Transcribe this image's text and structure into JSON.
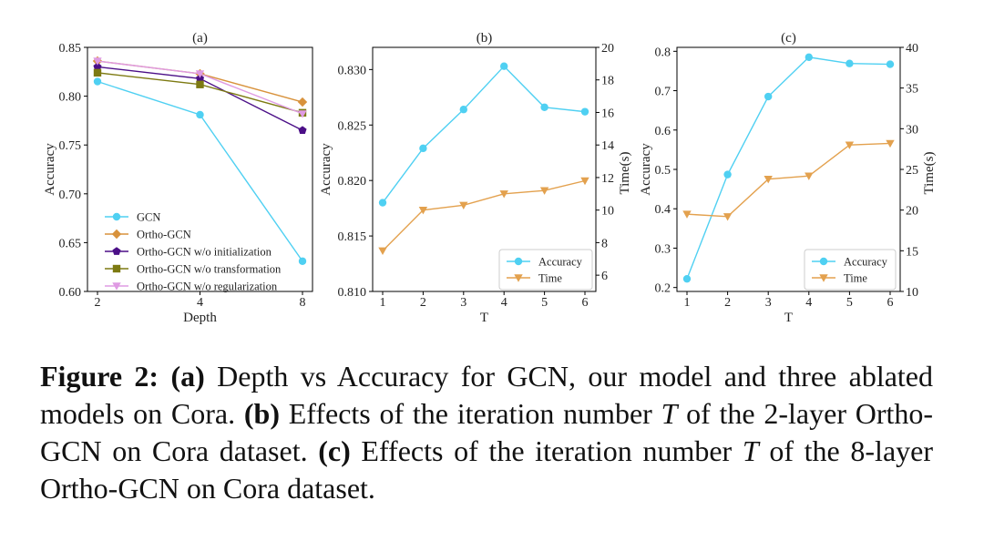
{
  "colors": {
    "gcn": "#4fd0f2",
    "ortho": "#d8923c",
    "init": "#4b0f87",
    "transform": "#7d7a12",
    "regular": "#df9be3",
    "time": "#e3a14e"
  },
  "chart_data": [
    {
      "type": "line",
      "title": "(a)",
      "xlabel": "Depth",
      "ylabel": "Accuracy",
      "categories": [
        "2",
        "4",
        "8"
      ],
      "ylim": [
        0.6,
        0.85
      ],
      "yticks": [
        "0.60",
        "0.65",
        "0.70",
        "0.75",
        "0.80",
        "0.85"
      ],
      "legend_position": "lower-left",
      "series": [
        {
          "name": "GCN",
          "values": [
            0.815,
            0.781,
            0.631
          ],
          "marker": "circle",
          "color_key": "gcn"
        },
        {
          "name": "Ortho-GCN",
          "values": [
            0.836,
            0.823,
            0.794
          ],
          "marker": "diamond",
          "color_key": "ortho"
        },
        {
          "name": "Ortho-GCN w/o initialization",
          "values": [
            0.83,
            0.818,
            0.765
          ],
          "marker": "pentagon",
          "color_key": "init"
        },
        {
          "name": "Ortho-GCN w/o transformation",
          "values": [
            0.824,
            0.812,
            0.783
          ],
          "marker": "square",
          "color_key": "transform"
        },
        {
          "name": "Ortho-GCN w/o regularization",
          "values": [
            0.836,
            0.823,
            0.782
          ],
          "marker": "triangle-down",
          "color_key": "regular"
        }
      ]
    },
    {
      "type": "line",
      "title": "(b)",
      "xlabel": "T",
      "ylabel": "Accuracy",
      "y2label": "Time(s)",
      "categories": [
        "1",
        "2",
        "3",
        "4",
        "5",
        "6"
      ],
      "ylim": [
        0.81,
        0.832
      ],
      "yticks": [
        "0.810",
        "0.815",
        "0.820",
        "0.825",
        "0.830"
      ],
      "y2lim": [
        5,
        20
      ],
      "y2ticks": [
        "6",
        "8",
        "10",
        "12",
        "14",
        "16",
        "18",
        "20"
      ],
      "legend_position": "lower-right",
      "series": [
        {
          "name": "Accuracy",
          "axis": "left",
          "values": [
            0.818,
            0.8229,
            0.8264,
            0.8303,
            0.8266,
            0.8262
          ],
          "marker": "circle",
          "color_key": "gcn"
        },
        {
          "name": "Time",
          "axis": "right",
          "values": [
            7.5,
            10.0,
            10.3,
            11.0,
            11.2,
            11.8
          ],
          "marker": "triangle-down",
          "color_key": "time"
        }
      ]
    },
    {
      "type": "line",
      "title": "(c)",
      "xlabel": "T",
      "ylabel": "Accuracy",
      "y2label": "Time(s)",
      "categories": [
        "1",
        "2",
        "3",
        "4",
        "5",
        "6"
      ],
      "ylim": [
        0.19,
        0.81
      ],
      "yticks": [
        "0.2",
        "0.3",
        "0.4",
        "0.5",
        "0.6",
        "0.7",
        "0.8"
      ],
      "y2lim": [
        10,
        40
      ],
      "y2ticks": [
        "10",
        "15",
        "20",
        "25",
        "30",
        "35",
        "40"
      ],
      "legend_position": "lower-right",
      "series": [
        {
          "name": "Accuracy",
          "axis": "left",
          "values": [
            0.222,
            0.487,
            0.685,
            0.785,
            0.769,
            0.767
          ],
          "marker": "circle",
          "color_key": "gcn"
        },
        {
          "name": "Time",
          "axis": "right",
          "values": [
            19.5,
            19.2,
            23.8,
            24.2,
            28.0,
            28.2
          ],
          "marker": "triangle-down",
          "color_key": "time"
        }
      ]
    }
  ],
  "caption": {
    "label": "Figure 2:",
    "a_tag": "(a)",
    "a_text": " Depth vs Accuracy for GCN, our model and three ablated models on Cora. ",
    "b_tag": "(b)",
    "b_text_1": " Effects of the iteration number ",
    "b_var": "T",
    "b_text_2": " of the 2-layer Ortho-GCN on Cora dataset. ",
    "c_tag": "(c)",
    "c_text_1": " Effects of the iteration number ",
    "c_var": "T",
    "c_text_2": " of the 8-layer Ortho-GCN on Cora dataset."
  }
}
